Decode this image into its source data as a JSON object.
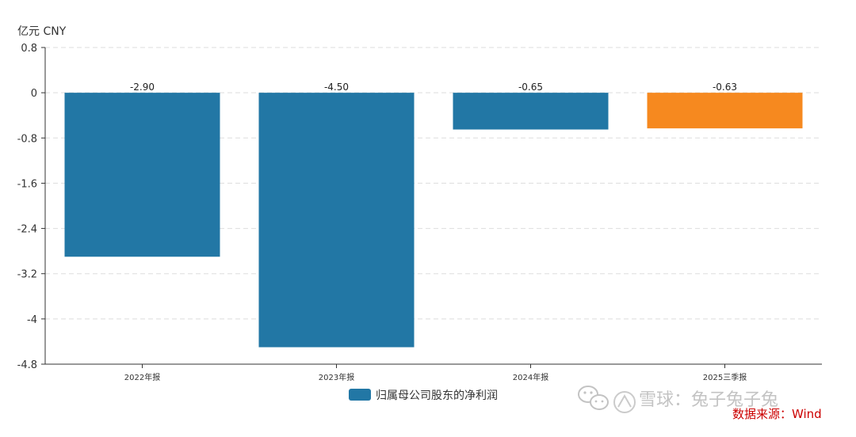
{
  "chart_data": {
    "type": "bar",
    "unit_label": "亿元  CNY",
    "categories": [
      "2022年报",
      "2023年报",
      "2024年报",
      "2025三季报"
    ],
    "series": [
      {
        "name": "归属母公司股东的净利润",
        "values": [
          -2.9,
          -4.5,
          -0.65,
          -0.63
        ],
        "color": "#2277a5"
      }
    ],
    "data_labels": [
      "-2.90",
      "-4.50",
      "-0.65",
      "-0.63"
    ],
    "highlight": {
      "index": 3,
      "color": "#f6891f"
    },
    "y_ticks": [
      0.8,
      0,
      -0.8,
      -1.6,
      -2.4,
      -3.2,
      -4,
      -4.8
    ],
    "y_tick_labels": [
      "0.8",
      "0",
      "-0.8",
      "-1.6",
      "-2.4",
      "-3.2",
      "-4",
      "-4.8"
    ],
    "ylim": [
      -4.8,
      0.8
    ],
    "grid": true,
    "legend_position": "bottom-center"
  },
  "watermark": {
    "platform_text": "雪球：兔子兔子兔",
    "source_text": "数据来源：Wind",
    "source_color": "#cc0000",
    "icon": "wechat-icon"
  }
}
